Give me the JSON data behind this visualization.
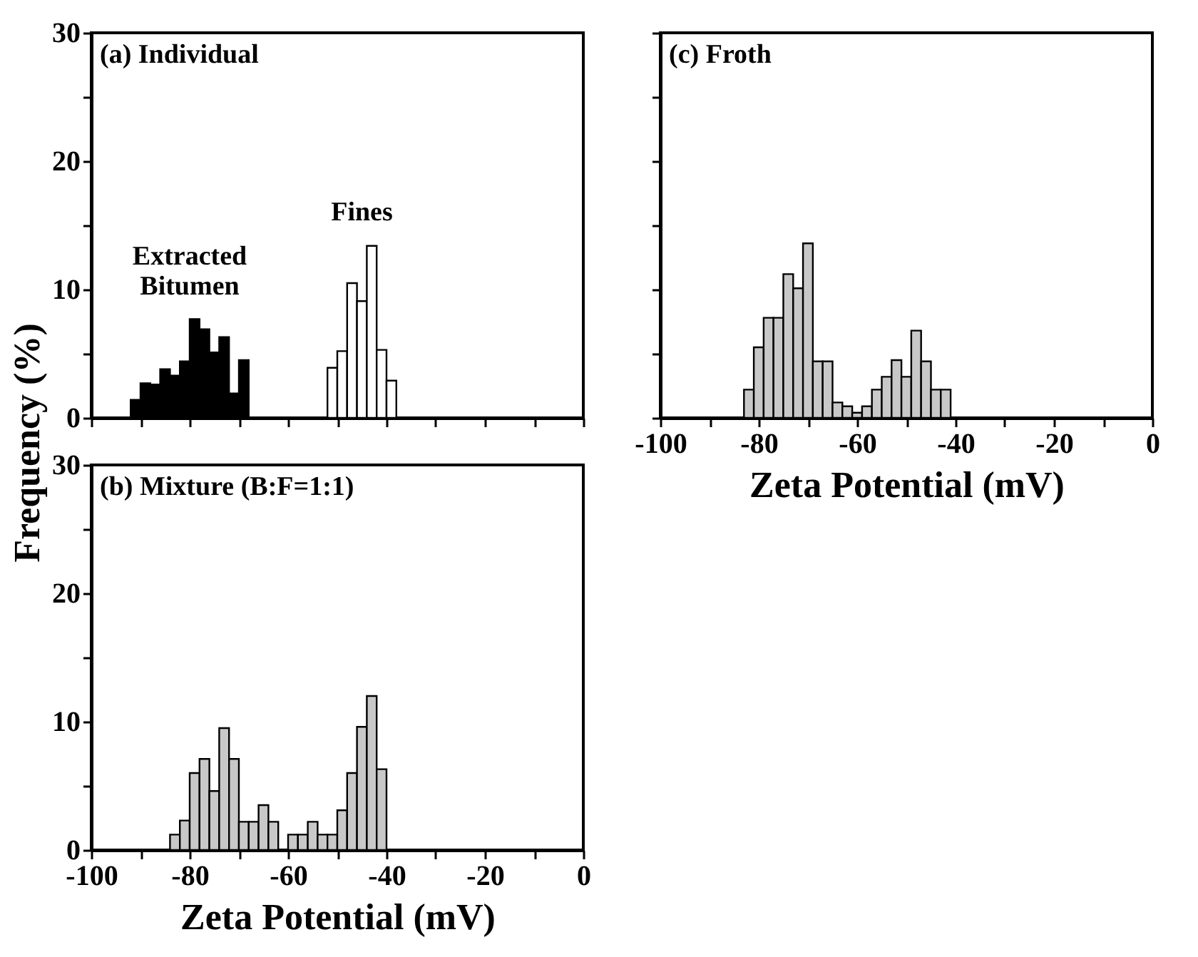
{
  "chart_data": [
    {
      "type": "histogram",
      "title": "(a) Individual",
      "ylabel": "Frequency (%)",
      "xlim": [
        -100,
        0
      ],
      "xticks": [
        -100,
        {
          "value": -90,
          "label": null
        },
        -80,
        {
          "value": -70,
          "label": null
        },
        -60,
        {
          "value": -50,
          "label": null
        },
        -40,
        {
          "value": -30,
          "label": null
        },
        -20,
        {
          "value": -10,
          "label": null
        },
        0
      ],
      "ylim": [
        0,
        30
      ],
      "yticks": [
        0,
        {
          "value": 5,
          "label": null
        },
        10,
        {
          "value": 15,
          "label": null
        },
        20,
        {
          "value": 25,
          "label": null
        },
        30
      ],
      "tick_labels": "y",
      "bins": [
        -92,
        -90,
        -88,
        -86,
        -84,
        -82,
        -80,
        -78,
        -76,
        -74,
        -72,
        -70,
        -68,
        -66,
        -64,
        -62,
        -60,
        -58,
        -56,
        -54,
        -52,
        -50,
        -48,
        -46,
        -44,
        -42,
        -40,
        -38
      ],
      "values": [
        1.4,
        2.7,
        2.6,
        3.8,
        3.3,
        4.4,
        7.7,
        6.9,
        5.1,
        6.3,
        1.9,
        4.5,
        null,
        null,
        null,
        null,
        null,
        null,
        null,
        null,
        3.9,
        5.2,
        10.5,
        9.1,
        13.4,
        5.3,
        2.9
      ],
      "colors": [
        "#000000",
        "#000000",
        "#000000",
        "#000000",
        "#000000",
        "#000000",
        "#000000",
        "#000000",
        "#000000",
        "#000000",
        "#000000",
        "#000000",
        null,
        null,
        null,
        null,
        null,
        null,
        null,
        null,
        "#ffffff",
        "#ffffff",
        "#ffffff",
        "#ffffff",
        "#ffffff",
        "#ffffff",
        "#ffffff"
      ],
      "annotations": [
        "Extracted Bitumen",
        "Fines"
      ]
    },
    {
      "type": "histogram",
      "title": "(b) Mixture (B:F=1:1)",
      "xlabel": "Zeta Potential (mV)",
      "xlim": [
        -100,
        0
      ],
      "xticks": [
        -100,
        {
          "value": -90,
          "label": null
        },
        -80,
        {
          "value": -70,
          "label": null
        },
        -60,
        {
          "value": -50,
          "label": null
        },
        -40,
        {
          "value": -30,
          "label": null
        },
        -20,
        {
          "value": -10,
          "label": null
        },
        0
      ],
      "ylim": [
        0,
        30
      ],
      "yticks": [
        0,
        {
          "value": 5,
          "label": null
        },
        10,
        {
          "value": 15,
          "label": null
        },
        20,
        {
          "value": 25,
          "label": null
        },
        30
      ],
      "color": "#c8c8c8",
      "bins": [
        -84,
        -82,
        -80,
        -78,
        -76,
        -74,
        -72,
        -70,
        -68,
        -66,
        -64,
        -62,
        -60,
        -58,
        -56,
        -54,
        -52,
        -50,
        -48,
        -46,
        -44,
        -42,
        -40
      ],
      "values": [
        1.2,
        2.3,
        6.0,
        7.1,
        4.6,
        9.5,
        7.1,
        2.2,
        2.2,
        3.5,
        2.2,
        null,
        1.2,
        1.2,
        2.2,
        1.2,
        1.2,
        3.1,
        6.0,
        9.6,
        12.0,
        6.3
      ]
    },
    {
      "type": "histogram",
      "title": "(c) Froth",
      "xlabel": "Zeta Potential (mV)",
      "xlim": [
        -100,
        0
      ],
      "xticks": [
        -100,
        {
          "value": -90,
          "label": null
        },
        -80,
        {
          "value": -70,
          "label": null
        },
        -60,
        {
          "value": -50,
          "label": null
        },
        -40,
        {
          "value": -30,
          "label": null
        },
        -20,
        {
          "value": -10,
          "label": null
        },
        0
      ],
      "ylim": [
        0,
        30
      ],
      "yticks": [
        0,
        {
          "value": 5,
          "label": null
        },
        10,
        {
          "value": 15,
          "label": null
        },
        20,
        {
          "value": 25,
          "label": null
        },
        30
      ],
      "tick_labels": "x",
      "color": "#c8c8c8",
      "bins": [
        -83,
        -81,
        -79,
        -77,
        -75,
        -73,
        -71,
        -69,
        -67,
        -65,
        -63,
        -61,
        -59,
        -57,
        -55,
        -53,
        -51,
        -49,
        -47,
        -45,
        -43,
        -41
      ],
      "values": [
        2.2,
        5.5,
        7.8,
        7.8,
        11.2,
        10.1,
        13.6,
        4.4,
        4.4,
        1.2,
        0.9,
        0.4,
        0.9,
        2.2,
        3.2,
        4.5,
        3.2,
        6.8,
        4.4,
        2.2,
        2.2
      ]
    }
  ]
}
